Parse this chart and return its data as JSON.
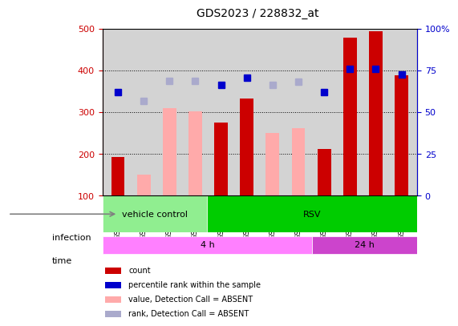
{
  "title": "GDS2023 / 228832_at",
  "samples": [
    "GSM76392",
    "GSM76393",
    "GSM76394",
    "GSM76395",
    "GSM76396",
    "GSM76397",
    "GSM76398",
    "GSM76399",
    "GSM76400",
    "GSM76401",
    "GSM76402",
    "GSM76403"
  ],
  "count_values": [
    193,
    null,
    null,
    null,
    275,
    332,
    null,
    null,
    213,
    478,
    494,
    388
  ],
  "count_absent": [
    null,
    150,
    310,
    303,
    null,
    null,
    250,
    262,
    null,
    null,
    null,
    null
  ],
  "rank_present": [
    348,
    null,
    null,
    null,
    365,
    383,
    null,
    null,
    348,
    403,
    403,
    390
  ],
  "rank_absent": [
    null,
    328,
    375,
    375,
    null,
    null,
    365,
    373,
    null,
    null,
    null,
    null
  ],
  "ylim_left": [
    100,
    500
  ],
  "ylim_right": [
    0,
    100
  ],
  "yticks_left": [
    100,
    200,
    300,
    400,
    500
  ],
  "yticks_right": [
    0,
    25,
    50,
    75,
    100
  ],
  "ytick_labels_right": [
    "0",
    "25",
    "50",
    "75",
    "100%"
  ],
  "infection_groups": [
    {
      "label": "vehicle control",
      "start": 0,
      "end": 4,
      "color": "#90ee90"
    },
    {
      "label": "RSV",
      "start": 4,
      "end": 12,
      "color": "#00cc00"
    }
  ],
  "time_groups": [
    {
      "label": "4 h",
      "start": 0,
      "end": 8,
      "color": "#ff80ff"
    },
    {
      "label": "24 h",
      "start": 8,
      "end": 12,
      "color": "#cc44cc"
    }
  ],
  "legend_items": [
    {
      "label": "count",
      "color": "#cc0000",
      "marker": "s"
    },
    {
      "label": "percentile rank within the sample",
      "color": "#0000cc",
      "marker": "s"
    },
    {
      "label": "value, Detection Call = ABSENT",
      "color": "#ffaaaa",
      "marker": "s"
    },
    {
      "label": "rank, Detection Call = ABSENT",
      "color": "#aaaadd",
      "marker": "s"
    }
  ],
  "bar_width": 0.35,
  "count_color": "#cc0000",
  "count_absent_color": "#ffaaaa",
  "rank_present_color": "#0000cc",
  "rank_absent_color": "#aaaacc",
  "grid_color": "#000000",
  "bg_color": "#d3d3d3",
  "plot_bg": "#ffffff",
  "left_tick_color": "#cc0000",
  "right_tick_color": "#0000cc"
}
